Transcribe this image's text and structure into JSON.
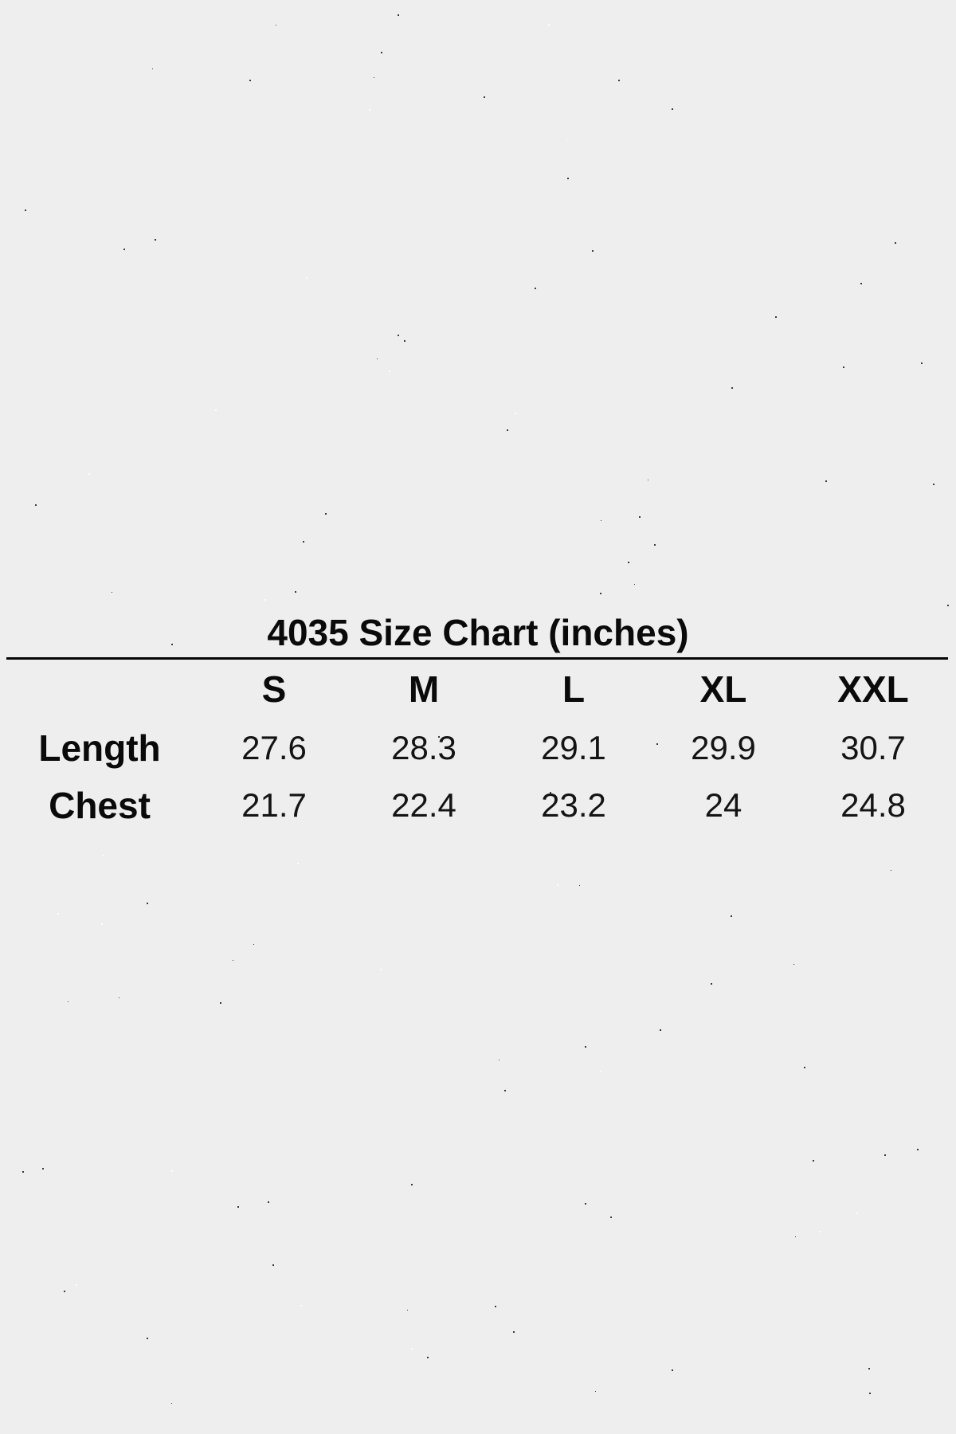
{
  "page": {
    "background_color": "#eeeeee",
    "text_color": "#0d0d0d"
  },
  "size_chart": {
    "title": "4035 Size Chart (inches)",
    "columns": [
      "S",
      "M",
      "L",
      "XL",
      "XXL"
    ],
    "rows": [
      {
        "label": "Length",
        "values": [
          "27.6",
          "28.3",
          "29.1",
          "29.9",
          "30.7"
        ]
      },
      {
        "label": "Chest",
        "values": [
          "21.7",
          "22.4",
          "23.2",
          "24",
          "24.8"
        ]
      }
    ]
  },
  "chart_data": {
    "type": "table",
    "title": "4035 Size Chart (inches)",
    "units": "inches",
    "columns": [
      "S",
      "M",
      "L",
      "XL",
      "XXL"
    ],
    "rows": [
      {
        "label": "Length",
        "values": [
          27.6,
          28.3,
          29.1,
          29.9,
          30.7
        ]
      },
      {
        "label": "Chest",
        "values": [
          21.7,
          22.4,
          23.2,
          24,
          24.8
        ]
      }
    ]
  }
}
